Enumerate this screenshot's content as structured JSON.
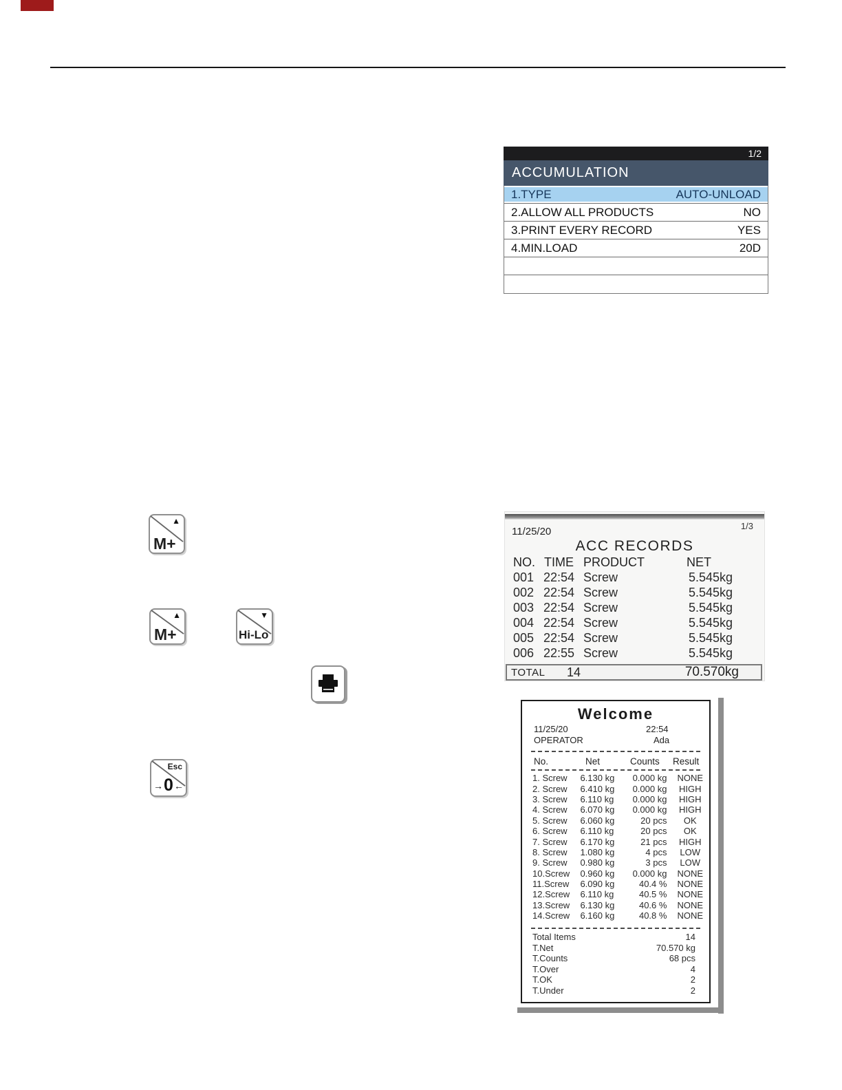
{
  "accumulation_menu": {
    "page_indicator": "1/2",
    "title": "ACCUMULATION",
    "rows": [
      {
        "label": "1.TYPE",
        "value": "AUTO-UNLOAD",
        "highlighted": true
      },
      {
        "label": "2.ALLOW ALL PRODUCTS",
        "value": "NO",
        "highlighted": false
      },
      {
        "label": "3.PRINT EVERY RECORD",
        "value": "YES",
        "highlighted": false
      },
      {
        "label": "4.MIN.LOAD",
        "value": "20D",
        "highlighted": false
      },
      {
        "label": "",
        "value": "",
        "highlighted": false
      },
      {
        "label": "",
        "value": "",
        "highlighted": false
      }
    ],
    "colors": {
      "top_bar": "#1c1c1e",
      "title_bar": "#46566a",
      "highlight_row": "#a6d2f0"
    }
  },
  "keys": {
    "m_plus": {
      "label": "M+",
      "corner_icon": "▲"
    },
    "hi_lo": {
      "label": "Hi-Lo",
      "corner_icon": "▼"
    },
    "zero_esc": {
      "corner_label": "Esc",
      "left_arrow": "→",
      "digit": "0",
      "right_arrow": "←"
    }
  },
  "acc_records": {
    "date": "11/25/20",
    "page_indicator": "1/3",
    "title": "ACC RECORDS",
    "columns": [
      "NO.",
      "TIME",
      "PRODUCT",
      "NET"
    ],
    "rows": [
      {
        "no": "001",
        "time": "22:54",
        "product": "Screw",
        "net": "5.545kg"
      },
      {
        "no": "002",
        "time": "22:54",
        "product": "Screw",
        "net": "5.545kg"
      },
      {
        "no": "003",
        "time": "22:54",
        "product": "Screw",
        "net": "5.545kg"
      },
      {
        "no": "004",
        "time": "22:54",
        "product": "Screw",
        "net": "5.545kg"
      },
      {
        "no": "005",
        "time": "22:54",
        "product": "Screw",
        "net": "5.545kg"
      },
      {
        "no": "006",
        "time": "22:55",
        "product": "Screw",
        "net": "5.545kg"
      }
    ],
    "total": {
      "label": "TOTAL",
      "count": "14",
      "net": "70.570kg"
    }
  },
  "receipt": {
    "title": "Welcome",
    "date": "11/25/20",
    "time": "22:54",
    "operator_label": "OPERATOR",
    "operator_value": "Ada",
    "columns": [
      "No.",
      "Net",
      "Counts",
      "Result"
    ],
    "items": [
      {
        "name": "1. Screw",
        "net": "6.130 kg",
        "counts": "0.000 kg",
        "result": "NONE"
      },
      {
        "name": "2. Screw",
        "net": "6.410 kg",
        "counts": "0.000 kg",
        "result": "HIGH"
      },
      {
        "name": "3. Screw",
        "net": "6.110 kg",
        "counts": "0.000 kg",
        "result": "HIGH"
      },
      {
        "name": "4. Screw",
        "net": "6.070 kg",
        "counts": "0.000 kg",
        "result": "HIGH"
      },
      {
        "name": "5. Screw",
        "net": "6.060 kg",
        "counts": "20 pcs",
        "result": "OK"
      },
      {
        "name": "6. Screw",
        "net": "6.110 kg",
        "counts": "20 pcs",
        "result": "OK"
      },
      {
        "name": "7. Screw",
        "net": "6.170 kg",
        "counts": "21 pcs",
        "result": "HIGH"
      },
      {
        "name": "8. Screw",
        "net": "1.080 kg",
        "counts": "4 pcs",
        "result": "LOW"
      },
      {
        "name": "9. Screw",
        "net": "0.980 kg",
        "counts": "3 pcs",
        "result": "LOW"
      },
      {
        "name": "10.Screw",
        "net": "0.960 kg",
        "counts": "0.000 kg",
        "result": "NONE"
      },
      {
        "name": "11.Screw",
        "net": "6.090 kg",
        "counts": "40.4 %",
        "result": "NONE"
      },
      {
        "name": "12.Screw",
        "net": "6.110 kg",
        "counts": "40.5 %",
        "result": "NONE"
      },
      {
        "name": "13.Screw",
        "net": "6.130 kg",
        "counts": "40.6 %",
        "result": "NONE"
      },
      {
        "name": "14.Screw",
        "net": "6.160 kg",
        "counts": "40.8 %",
        "result": "NONE"
      }
    ],
    "totals": [
      {
        "label": "Total Items",
        "value": "14"
      },
      {
        "label": "T.Net",
        "value": "70.570 kg"
      },
      {
        "label": "T.Counts",
        "value": "68 pcs"
      },
      {
        "label": "T.Over",
        "value": "4"
      },
      {
        "label": "T.OK",
        "value": "2"
      },
      {
        "label": "T.Under",
        "value": "2"
      }
    ]
  }
}
